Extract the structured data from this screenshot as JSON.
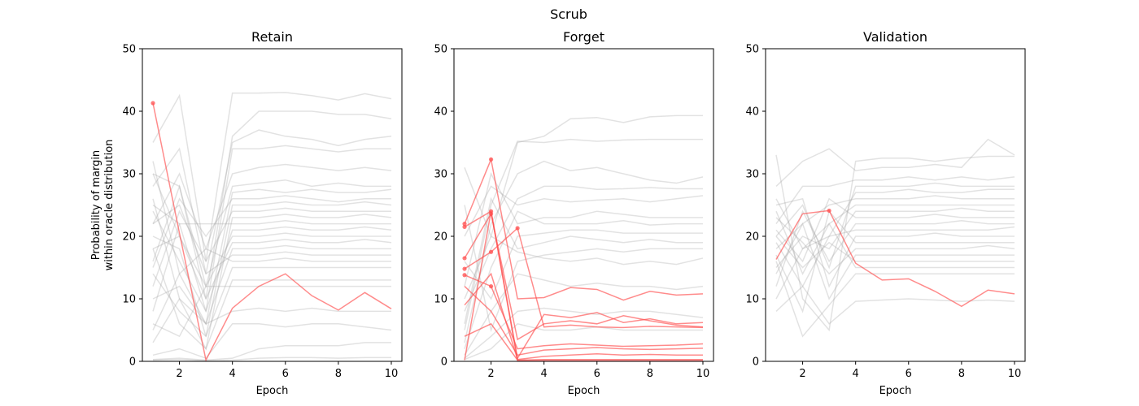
{
  "figure": {
    "suptitle": "Scrub"
  },
  "chart_data": [
    {
      "type": "line",
      "title": "Retain",
      "xlabel": "Epoch",
      "ylabel": "Probability of margin\nwithin oracle distribution",
      "xlim": [
        0.6,
        10.4
      ],
      "ylim": [
        0,
        50
      ],
      "xticks": [
        2,
        4,
        6,
        8,
        10
      ],
      "yticks": [
        0,
        10,
        20,
        30,
        40,
        50
      ],
      "grid": false,
      "x": [
        1,
        2,
        3,
        4,
        5,
        6,
        7,
        8,
        9,
        10
      ],
      "highlight_series": [
        {
          "color": "#ff4d4d",
          "values": [
            41.3,
            20.5,
            0.2,
            8.5,
            12.0,
            14.0,
            10.5,
            8.2,
            11.0,
            8.4
          ],
          "marker_indices": [
            0
          ]
        }
      ],
      "background_series_color": "#a0a0a0",
      "background_series": [
        [
          35.0,
          42.5,
          16.0,
          42.9,
          42.9,
          43.0,
          42.5,
          41.8,
          42.8,
          42.0
        ],
        [
          30.0,
          28.0,
          10.0,
          36.0,
          40.0,
          40.0,
          40.0,
          39.5,
          39.5,
          38.8
        ],
        [
          28.0,
          34.0,
          14.0,
          35.0,
          37.0,
          36.0,
          35.5,
          34.5,
          35.5,
          36.0
        ],
        [
          25.0,
          22.0,
          8.0,
          34.0,
          34.0,
          34.5,
          34.0,
          33.5,
          34.0,
          34.0
        ],
        [
          22.0,
          30.0,
          18.0,
          30.0,
          31.0,
          31.5,
          31.0,
          30.5,
          31.0,
          30.5
        ],
        [
          18.0,
          20.0,
          12.0,
          28.0,
          28.5,
          29.0,
          28.0,
          28.5,
          28.0,
          28.0
        ],
        [
          32.0,
          14.0,
          6.0,
          27.0,
          27.5,
          27.0,
          27.5,
          27.0,
          27.0,
          27.5
        ],
        [
          15.0,
          26.0,
          20.0,
          26.0,
          26.0,
          26.5,
          26.0,
          25.5,
          26.0,
          26.0
        ],
        [
          20.0,
          18.0,
          4.0,
          25.0,
          25.0,
          25.5,
          25.0,
          25.0,
          25.5,
          25.0
        ],
        [
          12.0,
          24.0,
          16.0,
          24.0,
          24.0,
          24.5,
          24.0,
          24.0,
          24.0,
          24.0
        ],
        [
          26.0,
          10.0,
          2.0,
          23.0,
          23.0,
          23.5,
          23.0,
          23.0,
          23.5,
          23.0
        ],
        [
          8.0,
          22.0,
          22.0,
          22.0,
          22.0,
          22.5,
          22.0,
          22.0,
          22.0,
          22.0
        ],
        [
          24.0,
          16.0,
          8.0,
          21.0,
          21.0,
          21.5,
          21.0,
          21.0,
          21.5,
          21.0
        ],
        [
          16.0,
          28.0,
          12.0,
          20.0,
          20.0,
          20.5,
          20.0,
          20.0,
          20.0,
          20.0
        ],
        [
          30.0,
          20.0,
          10.0,
          19.0,
          19.0,
          19.5,
          19.0,
          19.0,
          19.5,
          19.0
        ],
        [
          10.0,
          12.0,
          6.0,
          18.0,
          18.0,
          18.5,
          18.0,
          18.0,
          18.0,
          18.0
        ],
        [
          22.0,
          25.0,
          14.0,
          17.0,
          17.0,
          17.5,
          17.0,
          17.0,
          17.0,
          17.0
        ],
        [
          5.0,
          14.0,
          18.0,
          16.0,
          16.0,
          16.5,
          16.0,
          16.0,
          16.0,
          16.0
        ],
        [
          14.0,
          8.0,
          4.0,
          15.0,
          15.0,
          15.0,
          15.0,
          15.0,
          15.0,
          15.0
        ],
        [
          18.0,
          6.0,
          2.0,
          13.0,
          13.0,
          13.0,
          13.0,
          13.0,
          13.0,
          13.0
        ],
        [
          6.0,
          4.0,
          12.0,
          12.0,
          12.0,
          12.0,
          12.0,
          12.0,
          12.0,
          12.0
        ],
        [
          3.0,
          10.0,
          6.0,
          8.0,
          8.5,
          8.0,
          8.5,
          8.0,
          8.0,
          8.0
        ],
        [
          1.0,
          2.0,
          0.5,
          6.0,
          6.0,
          5.5,
          6.0,
          6.0,
          5.5,
          5.0
        ],
        [
          0.3,
          0.5,
          0.2,
          0.5,
          2.0,
          2.5,
          2.5,
          2.5,
          3.0,
          3.0
        ],
        [
          0.2,
          0.3,
          0.1,
          0.2,
          0.5,
          0.6,
          0.6,
          0.5,
          0.6,
          0.6
        ]
      ]
    },
    {
      "type": "line",
      "title": "Forget",
      "xlabel": "Epoch",
      "ylabel": "",
      "xlim": [
        0.6,
        10.4
      ],
      "ylim": [
        0,
        50
      ],
      "xticks": [
        2,
        4,
        6,
        8,
        10
      ],
      "yticks": [
        0,
        10,
        20,
        30,
        40,
        50
      ],
      "grid": false,
      "x": [
        1,
        2,
        3,
        4,
        5,
        6,
        7,
        8,
        9,
        10
      ],
      "highlight_series": [
        {
          "color": "#ff4d4d",
          "values": [
            22.0,
            32.3,
            10.0,
            10.2,
            11.8,
            11.5,
            9.8,
            11.2,
            10.6,
            10.8
          ],
          "marker_indices": [
            0,
            1
          ]
        },
        {
          "color": "#ff4d4d",
          "values": [
            21.5,
            24.0,
            0.5,
            7.5,
            7.0,
            7.8,
            6.2,
            6.8,
            6.0,
            6.2
          ],
          "marker_indices": [
            0,
            1
          ]
        },
        {
          "color": "#ff4d4d",
          "values": [
            16.5,
            23.6,
            3.5,
            6.0,
            6.5,
            6.0,
            7.3,
            6.5,
            5.8,
            5.5
          ],
          "marker_indices": [
            0,
            1
          ]
        },
        {
          "color": "#ff4d4d",
          "values": [
            14.8,
            17.5,
            21.3,
            5.5,
            5.8,
            5.5,
            5.4,
            5.6,
            5.5,
            5.4
          ],
          "marker_indices": [
            0,
            1,
            2
          ]
        },
        {
          "color": "#ff4d4d",
          "values": [
            13.8,
            12.0,
            2.0,
            2.5,
            2.8,
            2.6,
            2.4,
            2.5,
            2.6,
            2.8
          ],
          "marker_indices": [
            0,
            1
          ]
        },
        {
          "color": "#ff4d4d",
          "values": [
            12.0,
            8.0,
            1.0,
            1.8,
            2.0,
            2.2,
            2.0,
            1.9,
            2.0,
            2.1
          ],
          "marker_indices": []
        },
        {
          "color": "#ff4d4d",
          "values": [
            9.0,
            14.0,
            0.3,
            0.8,
            1.0,
            1.2,
            1.0,
            1.1,
            1.0,
            1.0
          ],
          "marker_indices": []
        },
        {
          "color": "#ff4d4d",
          "values": [
            4.0,
            6.0,
            0.2,
            0.3,
            0.3,
            0.3,
            0.3,
            0.3,
            0.3,
            0.3
          ],
          "marker_indices": []
        },
        {
          "color": "#ff4d4d",
          "values": [
            0.2,
            24.0,
            0.1,
            0.1,
            0.1,
            0.1,
            0.1,
            0.1,
            0.1,
            0.1
          ],
          "marker_indices": []
        }
      ],
      "background_series_color": "#a0a0a0",
      "background_series": [
        [
          31.0,
          20.0,
          35.0,
          36.0,
          38.8,
          39.0,
          38.2,
          39.1,
          39.3,
          39.3
        ],
        [
          5.0,
          25.0,
          35.2,
          35.0,
          35.5,
          35.2,
          35.4,
          35.5,
          35.5,
          35.5
        ],
        [
          3.0,
          22.0,
          30.0,
          32.0,
          30.5,
          31.0,
          30.0,
          29.0,
          28.5,
          29.5
        ],
        [
          8.0,
          18.0,
          26.0,
          28.0,
          28.0,
          27.5,
          27.6,
          27.8,
          27.6,
          27.6
        ],
        [
          20.0,
          28.0,
          25.0,
          26.0,
          25.5,
          25.8,
          26.0,
          25.5,
          26.0,
          26.5
        ],
        [
          12.0,
          30.0,
          22.0,
          23.0,
          23.0,
          24.0,
          23.5,
          23.0,
          23.0,
          23.0
        ],
        [
          2.0,
          15.0,
          24.0,
          22.0,
          22.0,
          22.0,
          22.5,
          21.8,
          22.0,
          22.0
        ],
        [
          16.0,
          10.0,
          20.0,
          20.5,
          21.0,
          21.0,
          20.5,
          20.5,
          20.5,
          20.5
        ],
        [
          6.0,
          26.0,
          18.0,
          19.0,
          20.0,
          19.5,
          19.0,
          19.5,
          19.0,
          19.0
        ],
        [
          25.0,
          5.0,
          16.0,
          17.0,
          17.5,
          18.0,
          17.5,
          18.0,
          18.0,
          18.0
        ],
        [
          10.0,
          20.0,
          17.5,
          16.5,
          16.0,
          16.5,
          15.5,
          16.0,
          15.5,
          16.5
        ],
        [
          1.0,
          8.0,
          14.0,
          13.0,
          12.0,
          12.5,
          12.0,
          12.0,
          11.5,
          12.0
        ],
        [
          0.5,
          4.0,
          8.0,
          8.5,
          8.0,
          7.5,
          8.0,
          8.0,
          7.5,
          7.0
        ],
        [
          0.3,
          2.0,
          6.0,
          5.0,
          5.0,
          5.5,
          5.0,
          5.0,
          5.0,
          5.0
        ]
      ]
    },
    {
      "type": "line",
      "title": "Validation",
      "xlabel": "Epoch",
      "ylabel": "",
      "xlim": [
        0.6,
        10.4
      ],
      "ylim": [
        0,
        50
      ],
      "xticks": [
        2,
        4,
        6,
        8,
        10
      ],
      "yticks": [
        0,
        10,
        20,
        30,
        40,
        50
      ],
      "grid": false,
      "x": [
        1,
        2,
        3,
        4,
        5,
        6,
        7,
        8,
        9,
        10
      ],
      "highlight_series": [
        {
          "color": "#ff4d4d",
          "values": [
            16.3,
            23.6,
            24.1,
            15.7,
            13.0,
            13.2,
            11.2,
            8.8,
            11.4,
            10.8
          ],
          "marker_indices": [
            2
          ]
        }
      ],
      "background_series_color": "#a0a0a0",
      "background_series": [
        [
          33.0,
          10.0,
          5.0,
          32.0,
          32.5,
          32.5,
          32.0,
          32.5,
          32.8,
          32.8
        ],
        [
          28.0,
          32.0,
          34.0,
          30.5,
          31.0,
          31.0,
          31.5,
          31.0,
          35.5,
          33.0
        ],
        [
          22.0,
          28.0,
          28.0,
          29.0,
          29.0,
          29.5,
          29.0,
          29.5,
          29.0,
          29.5
        ],
        [
          20.0,
          25.0,
          15.0,
          28.0,
          28.0,
          28.0,
          28.5,
          28.0,
          28.0,
          28.0
        ],
        [
          26.0,
          18.0,
          20.0,
          27.0,
          27.0,
          27.5,
          27.0,
          27.0,
          27.5,
          27.5
        ],
        [
          18.0,
          22.0,
          25.0,
          26.0,
          26.0,
          26.0,
          26.5,
          26.0,
          26.0,
          26.0
        ],
        [
          24.0,
          14.0,
          22.0,
          25.0,
          25.0,
          25.0,
          25.0,
          25.0,
          25.0,
          25.0
        ],
        [
          15.0,
          20.0,
          18.0,
          24.0,
          24.0,
          24.0,
          24.0,
          24.5,
          24.0,
          24.0
        ],
        [
          21.0,
          16.0,
          26.0,
          23.0,
          23.0,
          23.0,
          23.5,
          23.0,
          23.0,
          23.0
        ],
        [
          12.0,
          24.0,
          16.0,
          22.0,
          22.0,
          22.0,
          22.0,
          22.5,
          22.0,
          22.0
        ],
        [
          19.0,
          12.0,
          20.0,
          21.0,
          21.0,
          21.0,
          21.0,
          21.0,
          21.0,
          21.5
        ],
        [
          25.0,
          26.0,
          12.0,
          20.0,
          20.0,
          20.0,
          20.5,
          20.0,
          20.0,
          20.0
        ],
        [
          17.0,
          8.0,
          24.0,
          19.0,
          19.0,
          19.0,
          19.0,
          19.0,
          19.0,
          19.0
        ],
        [
          23.0,
          19.0,
          14.0,
          18.0,
          18.0,
          18.0,
          18.0,
          18.0,
          18.5,
          18.0
        ],
        [
          14.0,
          22.0,
          10.0,
          17.0,
          17.0,
          17.0,
          17.0,
          17.0,
          17.0,
          17.0
        ],
        [
          20.0,
          15.0,
          19.0,
          16.0,
          16.0,
          16.0,
          16.0,
          16.0,
          16.0,
          16.0
        ],
        [
          10.0,
          18.0,
          22.0,
          15.0,
          15.0,
          15.0,
          15.0,
          15.0,
          15.0,
          15.0
        ],
        [
          16.0,
          4.0,
          9.0,
          14.0,
          14.0,
          14.0,
          14.0,
          14.0,
          14.0,
          14.0
        ],
        [
          8.0,
          12.0,
          6.0,
          9.6,
          9.8,
          10.0,
          9.8,
          9.6,
          9.8,
          9.6
        ]
      ]
    }
  ]
}
